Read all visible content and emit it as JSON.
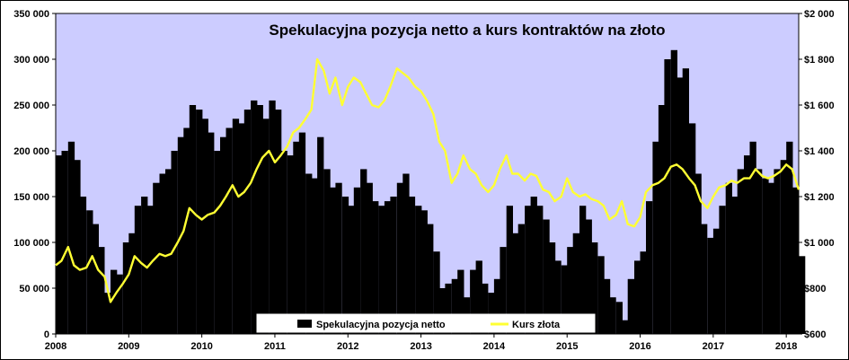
{
  "chart_data": {
    "type": "bar+line",
    "title": "Spekulacyjna  pozycja netto a kurs kontraktów na złoto",
    "xlabel": "",
    "ylabel": "",
    "x_ticks": [
      "2008",
      "2009",
      "2010",
      "2011",
      "2012",
      "2013",
      "2014",
      "2015",
      "2016",
      "2017",
      "2018"
    ],
    "x_range": [
      2008.0,
      2018.17
    ],
    "y_left": {
      "ticks": [
        "0",
        "50 000",
        "100 000",
        "150 000",
        "200 000",
        "250 000",
        "300 000",
        "350 000"
      ],
      "range": [
        0,
        350000
      ]
    },
    "y_right": {
      "ticks": [
        "$600",
        "$800",
        "$1 000",
        "$1 200",
        "$1 400",
        "$1 600",
        "$1 800",
        "$2 000"
      ],
      "range": [
        600,
        2000
      ]
    },
    "legend_position": "bottom-center",
    "plot_background": "#ccccff",
    "series": [
      {
        "name": "Spekulacyjna pozycja netto",
        "type": "bar",
        "axis": "left",
        "color": "#000000",
        "x": [
          2008.0,
          2008.08,
          2008.17,
          2008.25,
          2008.33,
          2008.42,
          2008.5,
          2008.58,
          2008.67,
          2008.75,
          2008.83,
          2008.92,
          2009.0,
          2009.08,
          2009.17,
          2009.25,
          2009.33,
          2009.42,
          2009.5,
          2009.58,
          2009.67,
          2009.75,
          2009.83,
          2009.92,
          2010.0,
          2010.08,
          2010.17,
          2010.25,
          2010.33,
          2010.42,
          2010.5,
          2010.58,
          2010.67,
          2010.75,
          2010.83,
          2010.92,
          2011.0,
          2011.08,
          2011.17,
          2011.25,
          2011.33,
          2011.42,
          2011.5,
          2011.58,
          2011.67,
          2011.75,
          2011.83,
          2011.92,
          2012.0,
          2012.08,
          2012.17,
          2012.25,
          2012.33,
          2012.42,
          2012.5,
          2012.58,
          2012.67,
          2012.75,
          2012.83,
          2012.92,
          2013.0,
          2013.08,
          2013.17,
          2013.25,
          2013.33,
          2013.42,
          2013.5,
          2013.58,
          2013.67,
          2013.75,
          2013.83,
          2013.92,
          2014.0,
          2014.08,
          2014.17,
          2014.25,
          2014.33,
          2014.42,
          2014.5,
          2014.58,
          2014.67,
          2014.75,
          2014.83,
          2014.92,
          2015.0,
          2015.08,
          2015.17,
          2015.25,
          2015.33,
          2015.42,
          2015.5,
          2015.58,
          2015.67,
          2015.75,
          2015.83,
          2015.92,
          2016.0,
          2016.08,
          2016.17,
          2016.25,
          2016.33,
          2016.42,
          2016.5,
          2016.58,
          2016.67,
          2016.75,
          2016.83,
          2016.92,
          2017.0,
          2017.08,
          2017.17,
          2017.25,
          2017.33,
          2017.42,
          2017.5,
          2017.58,
          2017.67,
          2017.75,
          2017.83,
          2017.92,
          2018.0,
          2018.08,
          2018.17
        ],
        "values": [
          195000,
          200000,
          210000,
          190000,
          150000,
          135000,
          120000,
          95000,
          45000,
          70000,
          65000,
          100000,
          110000,
          140000,
          150000,
          140000,
          165000,
          175000,
          180000,
          200000,
          215000,
          225000,
          250000,
          245000,
          235000,
          220000,
          200000,
          215000,
          225000,
          235000,
          230000,
          245000,
          255000,
          250000,
          235000,
          255000,
          245000,
          200000,
          195000,
          210000,
          220000,
          175000,
          170000,
          215000,
          180000,
          160000,
          165000,
          150000,
          140000,
          160000,
          180000,
          165000,
          145000,
          140000,
          145000,
          150000,
          165000,
          175000,
          150000,
          140000,
          135000,
          120000,
          90000,
          50000,
          55000,
          60000,
          70000,
          40000,
          70000,
          80000,
          55000,
          45000,
          60000,
          95000,
          140000,
          110000,
          120000,
          140000,
          150000,
          140000,
          125000,
          100000,
          80000,
          75000,
          95000,
          110000,
          140000,
          125000,
          100000,
          85000,
          60000,
          40000,
          35000,
          15000,
          60000,
          80000,
          90000,
          145000,
          210000,
          250000,
          300000,
          310000,
          280000,
          290000,
          230000,
          175000,
          120000,
          105000,
          115000,
          140000,
          165000,
          150000,
          180000,
          195000,
          210000,
          180000,
          170000,
          165000,
          180000,
          190000,
          210000,
          160000,
          85000
        ]
      },
      {
        "name": "Kurs złota",
        "type": "line",
        "axis": "right",
        "color": "#ffff33",
        "x": [
          2008.0,
          2008.08,
          2008.17,
          2008.25,
          2008.33,
          2008.42,
          2008.5,
          2008.58,
          2008.67,
          2008.75,
          2008.83,
          2008.92,
          2009.0,
          2009.08,
          2009.17,
          2009.25,
          2009.33,
          2009.42,
          2009.5,
          2009.58,
          2009.67,
          2009.75,
          2009.83,
          2009.92,
          2010.0,
          2010.08,
          2010.17,
          2010.25,
          2010.33,
          2010.42,
          2010.5,
          2010.58,
          2010.67,
          2010.75,
          2010.83,
          2010.92,
          2011.0,
          2011.08,
          2011.17,
          2011.25,
          2011.33,
          2011.42,
          2011.5,
          2011.58,
          2011.67,
          2011.75,
          2011.83,
          2011.92,
          2012.0,
          2012.08,
          2012.17,
          2012.25,
          2012.33,
          2012.42,
          2012.5,
          2012.58,
          2012.67,
          2012.75,
          2012.83,
          2012.92,
          2013.0,
          2013.08,
          2013.17,
          2013.25,
          2013.33,
          2013.42,
          2013.5,
          2013.58,
          2013.67,
          2013.75,
          2013.83,
          2013.92,
          2014.0,
          2014.08,
          2014.17,
          2014.25,
          2014.33,
          2014.42,
          2014.5,
          2014.58,
          2014.67,
          2014.75,
          2014.83,
          2014.92,
          2015.0,
          2015.08,
          2015.17,
          2015.25,
          2015.33,
          2015.42,
          2015.5,
          2015.58,
          2015.67,
          2015.75,
          2015.83,
          2015.92,
          2016.0,
          2016.08,
          2016.17,
          2016.25,
          2016.33,
          2016.42,
          2016.5,
          2016.58,
          2016.67,
          2016.75,
          2016.83,
          2016.92,
          2017.0,
          2017.08,
          2017.17,
          2017.25,
          2017.33,
          2017.42,
          2017.5,
          2017.58,
          2017.67,
          2017.75,
          2017.83,
          2017.92,
          2018.0,
          2018.08,
          2018.17
        ],
        "values": [
          900,
          920,
          980,
          900,
          880,
          890,
          940,
          880,
          850,
          740,
          780,
          820,
          860,
          940,
          910,
          890,
          920,
          950,
          940,
          950,
          1000,
          1050,
          1150,
          1120,
          1100,
          1120,
          1130,
          1160,
          1200,
          1250,
          1200,
          1220,
          1260,
          1320,
          1370,
          1400,
          1350,
          1380,
          1420,
          1480,
          1500,
          1540,
          1580,
          1800,
          1750,
          1650,
          1720,
          1600,
          1680,
          1720,
          1700,
          1650,
          1600,
          1590,
          1620,
          1680,
          1760,
          1740,
          1720,
          1680,
          1660,
          1620,
          1560,
          1440,
          1400,
          1260,
          1300,
          1380,
          1320,
          1300,
          1250,
          1220,
          1250,
          1320,
          1380,
          1300,
          1300,
          1270,
          1300,
          1290,
          1230,
          1220,
          1180,
          1200,
          1280,
          1220,
          1200,
          1210,
          1190,
          1180,
          1160,
          1100,
          1120,
          1180,
          1080,
          1070,
          1110,
          1220,
          1250,
          1260,
          1280,
          1330,
          1340,
          1320,
          1280,
          1250,
          1180,
          1150,
          1200,
          1240,
          1250,
          1270,
          1260,
          1280,
          1280,
          1320,
          1290,
          1280,
          1290,
          1310,
          1340,
          1320,
          1230
        ]
      }
    ]
  }
}
